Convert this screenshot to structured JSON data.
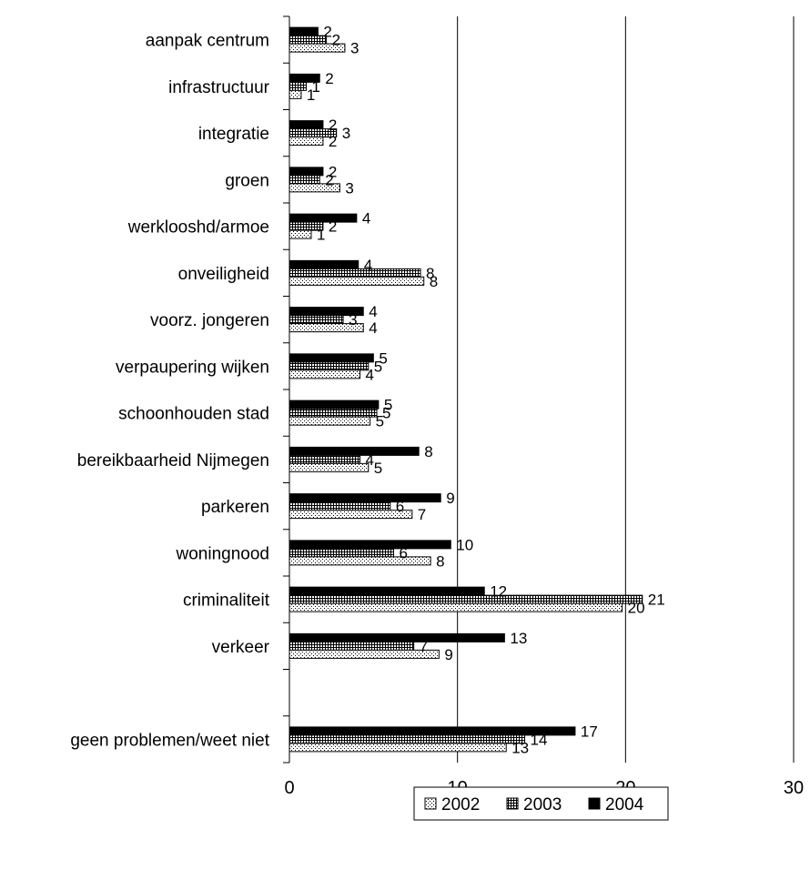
{
  "chart_data": {
    "type": "bar",
    "orientation": "horizontal",
    "categories": [
      "aanpak centrum",
      "infrastructuur",
      "integratie",
      "groen",
      "werklooshd/armoe",
      "onveiligheid",
      "voorz. jongeren",
      "verpaupering wijken",
      "schoonhouden stad",
      "bereikbaarheid Nijmegen",
      "parkeren",
      "woningnood",
      "criminaliteit",
      "verkeer",
      "",
      "geen problemen/weet niet"
    ],
    "series": [
      {
        "name": "2002",
        "values": [
          3.3,
          0.7,
          2.0,
          3.0,
          1.3,
          8.0,
          4.4,
          4.2,
          4.8,
          4.7,
          7.3,
          8.4,
          19.8,
          8.9,
          null,
          12.9
        ],
        "labels": [
          "3",
          "1",
          "2",
          "3",
          "1",
          "8",
          "4",
          "4",
          "5",
          "5",
          "7",
          "8",
          "20",
          "9",
          "",
          "13"
        ]
      },
      {
        "name": "2003",
        "values": [
          2.2,
          1.0,
          2.8,
          1.8,
          2.0,
          7.8,
          3.2,
          4.7,
          5.2,
          4.2,
          6.0,
          6.2,
          21.0,
          7.4,
          null,
          14.0
        ],
        "labels": [
          "2",
          "1",
          "3",
          "2",
          "2",
          "8",
          "3",
          "5",
          "5",
          "4",
          "6",
          "6",
          "21",
          "7",
          "",
          "14"
        ]
      },
      {
        "name": "2004",
        "values": [
          1.7,
          1.8,
          2.0,
          2.0,
          4.0,
          4.1,
          4.4,
          5.0,
          5.3,
          7.7,
          9.0,
          9.6,
          11.6,
          12.8,
          null,
          17.0
        ],
        "labels": [
          "2",
          "2",
          "2",
          "2",
          "4",
          "4",
          "4",
          "5",
          "5",
          "8",
          "9",
          "10",
          "12",
          "13",
          "",
          "17"
        ]
      }
    ],
    "xlim": [
      0,
      30
    ],
    "xticks": [
      "0",
      "10",
      "20",
      "30"
    ],
    "grid": "vertical",
    "legend": "bottom"
  }
}
